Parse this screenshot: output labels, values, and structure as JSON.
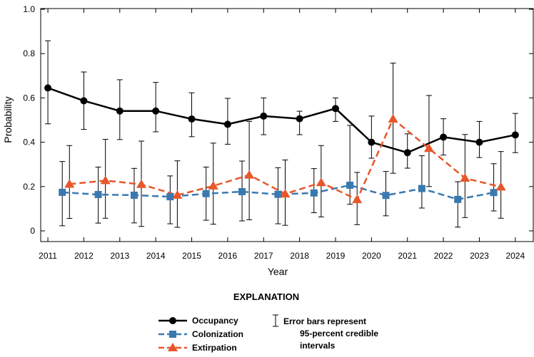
{
  "chart_data": {
    "type": "line",
    "x": [
      2011,
      2012,
      2013,
      2014,
      2015,
      2016,
      2017,
      2018,
      2019,
      2020,
      2021,
      2022,
      2023,
      2024
    ],
    "xlabel": "Year",
    "ylabel": "Probability",
    "xlim": [
      2010.8,
      2024.5
    ],
    "ylim": [
      0,
      1.0
    ],
    "x_ticks": [
      "2011",
      "2012",
      "2013",
      "2014",
      "2015",
      "2016",
      "2017",
      "2018",
      "2019",
      "2020",
      "2021",
      "2022",
      "2023",
      "2024"
    ],
    "y_ticks": [
      "0",
      "0.2",
      "0.4",
      "0.6",
      "0.8",
      "1.0"
    ],
    "grid": false,
    "series": [
      {
        "name": "Occupancy",
        "color": "#000000",
        "marker": "circle",
        "x": [
          2011,
          2012,
          2013,
          2014,
          2015,
          2016,
          2017,
          2018,
          2019,
          2020,
          2021,
          2022,
          2023,
          2024
        ],
        "values": [
          0.645,
          0.587,
          0.541,
          0.541,
          0.505,
          0.481,
          0.518,
          0.506,
          0.552,
          0.4,
          0.353,
          0.423,
          0.4,
          0.433
        ],
        "lower": [
          0.483,
          0.458,
          0.412,
          0.447,
          0.425,
          0.391,
          0.434,
          0.434,
          0.494,
          0.328,
          0.283,
          0.342,
          0.331,
          0.353
        ],
        "upper": [
          0.858,
          0.717,
          0.682,
          0.67,
          0.623,
          0.598,
          0.6,
          0.54,
          0.6,
          0.518,
          0.438,
          0.506,
          0.494,
          0.53
        ]
      },
      {
        "name": "Colonization",
        "color": "#3a79b0",
        "marker": "square",
        "x": [
          2011.4,
          2012.4,
          2013.4,
          2014.4,
          2015.4,
          2016.4,
          2017.4,
          2018.4,
          2019.4,
          2020.4,
          2021.4,
          2022.4,
          2023.4
        ],
        "values": [
          0.174,
          0.164,
          0.161,
          0.154,
          0.168,
          0.177,
          0.165,
          0.171,
          0.206,
          0.16,
          0.191,
          0.142,
          0.173
        ],
        "lower": [
          0.023,
          0.035,
          0.036,
          0.032,
          0.048,
          0.045,
          0.032,
          0.082,
          0.12,
          0.068,
          0.103,
          0.017,
          0.09
        ],
        "upper": [
          0.313,
          0.288,
          0.282,
          0.248,
          0.288,
          0.315,
          0.285,
          0.281,
          0.476,
          0.268,
          0.339,
          0.222,
          0.303
        ]
      },
      {
        "name": "Extirpation",
        "color": "#e8572a",
        "marker": "triangle",
        "x": [
          2011.6,
          2012.6,
          2013.6,
          2014.6,
          2015.6,
          2016.6,
          2017.6,
          2018.6,
          2019.6,
          2020.6,
          2021.6,
          2022.6,
          2023.6
        ],
        "values": [
          0.211,
          0.227,
          0.21,
          0.161,
          0.203,
          0.252,
          0.167,
          0.218,
          0.141,
          0.505,
          0.372,
          0.238,
          0.198
        ],
        "lower": [
          0.056,
          0.057,
          0.02,
          0.016,
          0.03,
          0.05,
          0.025,
          0.063,
          0.028,
          0.26,
          0.2,
          0.06,
          0.057
        ],
        "upper": [
          0.385,
          0.413,
          0.405,
          0.316,
          0.396,
          0.494,
          0.32,
          0.385,
          0.264,
          0.757,
          0.611,
          0.435,
          0.358
        ]
      }
    ]
  },
  "legend": {
    "title": "EXPLANATION",
    "items": [
      {
        "label": "Occupancy",
        "color": "#000000",
        "marker": "circle"
      },
      {
        "label": "Colonization",
        "color": "#3a79b0",
        "marker": "square"
      },
      {
        "label": "Extirpation",
        "color": "#e8572a",
        "marker": "triangle"
      }
    ],
    "errorbar_note": [
      "Error bars represent",
      "95-percent credible",
      "intervals"
    ]
  }
}
